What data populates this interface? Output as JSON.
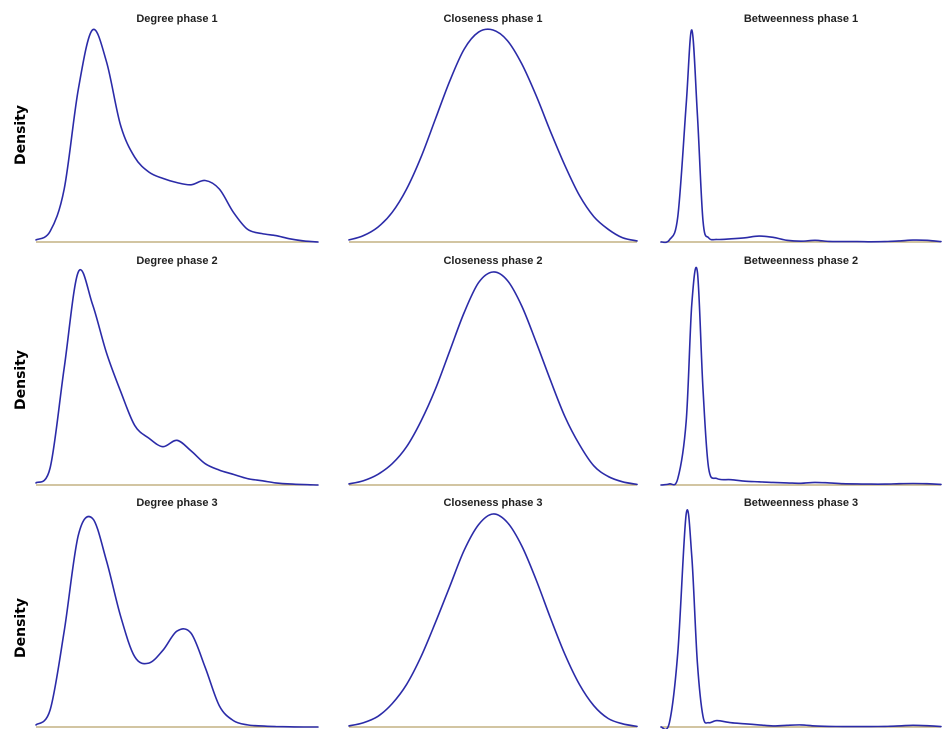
{
  "colors": {
    "curve": "#2b2ba8",
    "baseline": "#b8a26a",
    "background": "#ffffff"
  },
  "row_labels": [
    "Density",
    "Density",
    "Density"
  ],
  "chart_data": [
    {
      "type": "line",
      "title": "Degree phase 1",
      "ylabel": "Density",
      "x": [
        0,
        0.05,
        0.1,
        0.15,
        0.2,
        0.25,
        0.3,
        0.35,
        0.4,
        0.45,
        0.5,
        0.55,
        0.6,
        0.65,
        0.7,
        0.75,
        0.8,
        0.85,
        0.9,
        0.95,
        1
      ],
      "series": [
        {
          "values": [
            0.01,
            0.05,
            0.25,
            0.72,
            1.0,
            0.85,
            0.55,
            0.4,
            0.33,
            0.3,
            0.28,
            0.27,
            0.29,
            0.25,
            0.14,
            0.06,
            0.04,
            0.03,
            0.015,
            0.005,
            0
          ]
        }
      ]
    },
    {
      "type": "line",
      "title": "Closeness phase 1",
      "ylabel": "",
      "x": [
        0,
        0.05,
        0.1,
        0.15,
        0.2,
        0.25,
        0.3,
        0.35,
        0.4,
        0.45,
        0.5,
        0.55,
        0.6,
        0.65,
        0.7,
        0.75,
        0.8,
        0.85,
        0.9,
        0.95,
        1
      ],
      "series": [
        {
          "values": [
            0.01,
            0.03,
            0.07,
            0.14,
            0.25,
            0.4,
            0.58,
            0.76,
            0.91,
            0.99,
            1.0,
            0.95,
            0.84,
            0.69,
            0.52,
            0.36,
            0.22,
            0.12,
            0.06,
            0.02,
            0.005
          ]
        }
      ]
    },
    {
      "type": "line",
      "title": "Betweenness phase 1",
      "ylabel": "",
      "x": [
        0,
        0.03,
        0.06,
        0.09,
        0.11,
        0.13,
        0.15,
        0.17,
        0.2,
        0.25,
        0.3,
        0.35,
        0.4,
        0.45,
        0.5,
        0.55,
        0.6,
        0.65,
        0.7,
        0.75,
        0.8,
        0.85,
        0.9,
        0.95,
        1
      ],
      "series": [
        {
          "values": [
            0,
            0.01,
            0.12,
            0.65,
            1.0,
            0.6,
            0.1,
            0.02,
            0.012,
            0.015,
            0.02,
            0.028,
            0.022,
            0.008,
            0.004,
            0.008,
            0.003,
            0.002,
            0.002,
            0.001,
            0.002,
            0.005,
            0.009,
            0.008,
            0.002
          ]
        }
      ]
    },
    {
      "type": "line",
      "title": "Degree phase 2",
      "ylabel": "Density",
      "x": [
        0,
        0.05,
        0.1,
        0.15,
        0.2,
        0.25,
        0.3,
        0.35,
        0.4,
        0.45,
        0.5,
        0.55,
        0.6,
        0.65,
        0.7,
        0.75,
        0.8,
        0.85,
        0.9,
        0.95,
        1
      ],
      "series": [
        {
          "values": [
            0.01,
            0.08,
            0.55,
            1.0,
            0.85,
            0.62,
            0.44,
            0.28,
            0.22,
            0.18,
            0.21,
            0.16,
            0.1,
            0.07,
            0.05,
            0.03,
            0.02,
            0.01,
            0.005,
            0.002,
            0
          ]
        }
      ]
    },
    {
      "type": "line",
      "title": "Closeness phase 2",
      "ylabel": "",
      "x": [
        0,
        0.05,
        0.1,
        0.15,
        0.2,
        0.25,
        0.3,
        0.35,
        0.4,
        0.45,
        0.5,
        0.55,
        0.6,
        0.65,
        0.7,
        0.75,
        0.8,
        0.85,
        0.9,
        0.95,
        1
      ],
      "series": [
        {
          "values": [
            0.005,
            0.02,
            0.05,
            0.1,
            0.18,
            0.3,
            0.45,
            0.63,
            0.81,
            0.95,
            1.0,
            0.96,
            0.84,
            0.67,
            0.49,
            0.32,
            0.19,
            0.09,
            0.04,
            0.015,
            0.003
          ]
        }
      ]
    },
    {
      "type": "line",
      "title": "Betweenness phase 2",
      "ylabel": "",
      "x": [
        0,
        0.03,
        0.06,
        0.09,
        0.11,
        0.13,
        0.15,
        0.17,
        0.2,
        0.25,
        0.3,
        0.35,
        0.4,
        0.45,
        0.5,
        0.55,
        0.6,
        0.65,
        0.7,
        0.75,
        0.8,
        0.85,
        0.9,
        0.95,
        1
      ],
      "series": [
        {
          "values": [
            0,
            0.005,
            0.03,
            0.3,
            0.85,
            1.0,
            0.45,
            0.08,
            0.03,
            0.025,
            0.018,
            0.015,
            0.012,
            0.01,
            0.008,
            0.012,
            0.01,
            0.006,
            0.005,
            0.004,
            0.004,
            0.006,
            0.007,
            0.006,
            0.003
          ]
        }
      ]
    },
    {
      "type": "line",
      "title": "Degree phase 3",
      "ylabel": "",
      "x": [
        0,
        0.05,
        0.1,
        0.15,
        0.2,
        0.25,
        0.3,
        0.35,
        0.4,
        0.45,
        0.5,
        0.55,
        0.6,
        0.65,
        0.7,
        0.75,
        0.8,
        0.85,
        0.9,
        0.95,
        1
      ],
      "series": [
        {
          "values": [
            0.01,
            0.08,
            0.45,
            0.9,
            0.98,
            0.78,
            0.52,
            0.33,
            0.3,
            0.36,
            0.45,
            0.44,
            0.28,
            0.1,
            0.03,
            0.01,
            0.005,
            0.002,
            0.001,
            0,
            0
          ]
        }
      ]
    },
    {
      "type": "line",
      "title": "Closeness phase 3",
      "ylabel": "",
      "x": [
        0,
        0.05,
        0.1,
        0.15,
        0.2,
        0.25,
        0.3,
        0.35,
        0.4,
        0.45,
        0.5,
        0.55,
        0.6,
        0.65,
        0.7,
        0.75,
        0.8,
        0.85,
        0.9,
        0.95,
        1
      ],
      "series": [
        {
          "values": [
            0.005,
            0.02,
            0.05,
            0.11,
            0.2,
            0.33,
            0.49,
            0.66,
            0.83,
            0.95,
            1.0,
            0.96,
            0.85,
            0.69,
            0.51,
            0.34,
            0.2,
            0.1,
            0.04,
            0.015,
            0.003
          ]
        }
      ]
    },
    {
      "type": "line",
      "title": "Betweenness phase 3",
      "ylabel": "",
      "x": [
        0,
        0.03,
        0.06,
        0.09,
        0.11,
        0.13,
        0.15,
        0.17,
        0.2,
        0.25,
        0.3,
        0.35,
        0.4,
        0.45,
        0.5,
        0.55,
        0.6,
        0.65,
        0.7,
        0.75,
        0.8,
        0.85,
        0.9,
        0.95,
        1
      ],
      "series": [
        {
          "values": [
            0,
            0.02,
            0.35,
            1.0,
            0.8,
            0.3,
            0.05,
            0.02,
            0.03,
            0.02,
            0.015,
            0.01,
            0.005,
            0.008,
            0.01,
            0.005,
            0.003,
            0.002,
            0.002,
            0.002,
            0.003,
            0.005,
            0.008,
            0.006,
            0.002
          ]
        }
      ]
    }
  ]
}
